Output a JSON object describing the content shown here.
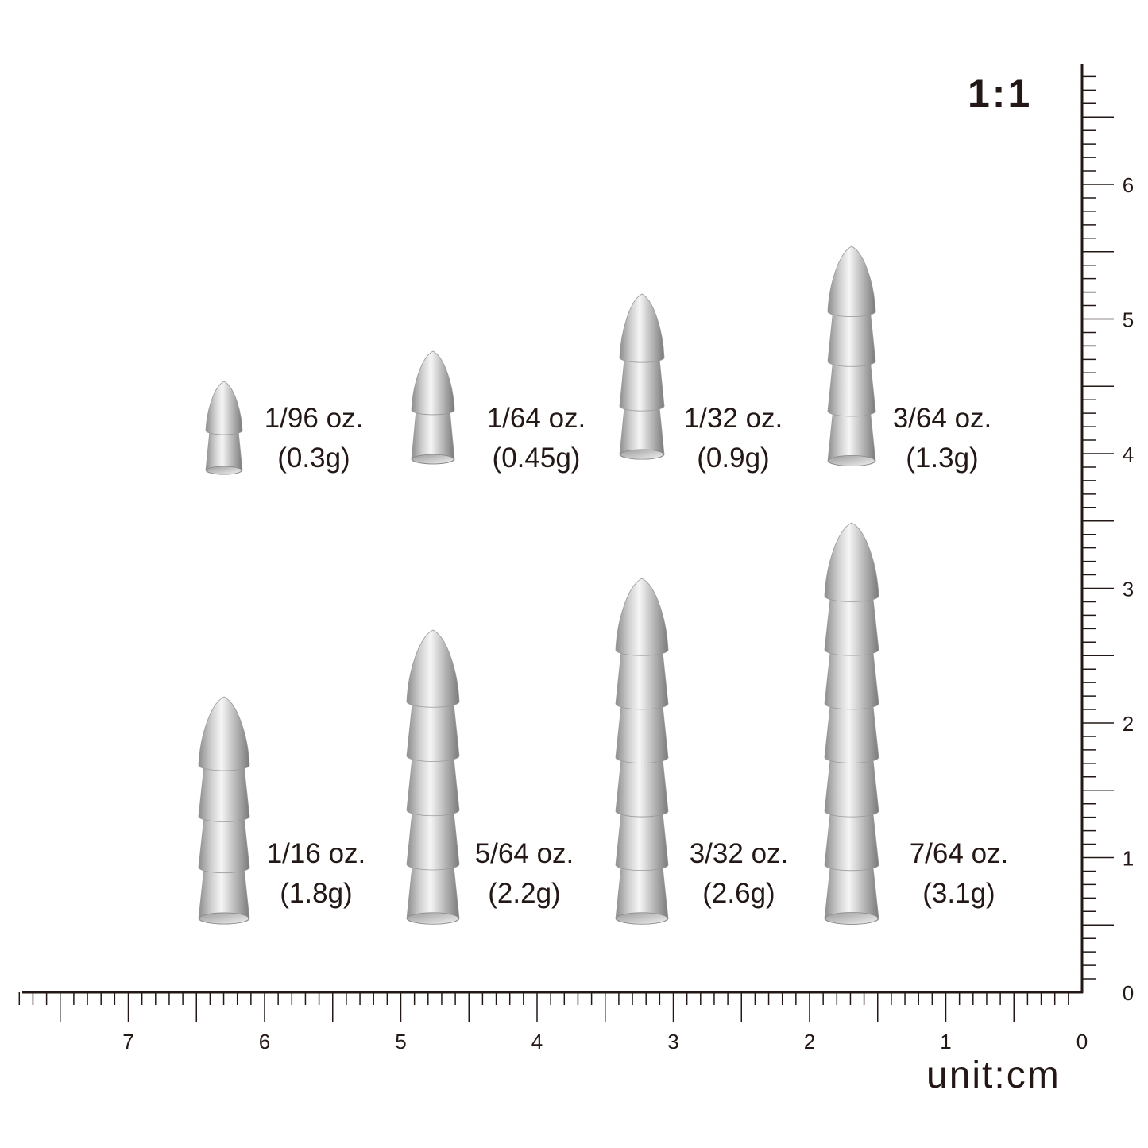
{
  "scale_label": "1:1",
  "unit_label": "unit:cm",
  "ruler": {
    "x_axis": {
      "range": [
        0,
        7.8
      ],
      "labels": [
        "0",
        "1",
        "2",
        "3",
        "4",
        "5",
        "6",
        "7"
      ],
      "minor_tick_mm": 1
    },
    "y_axis": {
      "range": [
        0,
        6.8
      ],
      "labels": [
        "0",
        "1",
        "2",
        "3",
        "4",
        "5",
        "6"
      ],
      "minor_tick_mm": 1
    }
  },
  "colors": {
    "ink": "#231815",
    "metal_dark": "#8a8a8a",
    "metal_light": "#f4f4f4"
  },
  "sinkers": [
    {
      "weight": "1/96 oz.",
      "grams": "(0.3g)",
      "segments": 1
    },
    {
      "weight": "1/64 oz.",
      "grams": "(0.45g)",
      "segments": 1
    },
    {
      "weight": "1/32 oz.",
      "grams": "(0.9g)",
      "segments": 2
    },
    {
      "weight": "3/64 oz.",
      "grams": "(1.3g)",
      "segments": 3
    },
    {
      "weight": "1/16 oz.",
      "grams": "(1.8g)",
      "segments": 3
    },
    {
      "weight": "5/64 oz.",
      "grams": "(2.2g)",
      "segments": 4
    },
    {
      "weight": "3/32 oz.",
      "grams": "(2.6g)",
      "segments": 5
    },
    {
      "weight": "7/64 oz.",
      "grams": "(3.1g)",
      "segments": 6
    }
  ]
}
